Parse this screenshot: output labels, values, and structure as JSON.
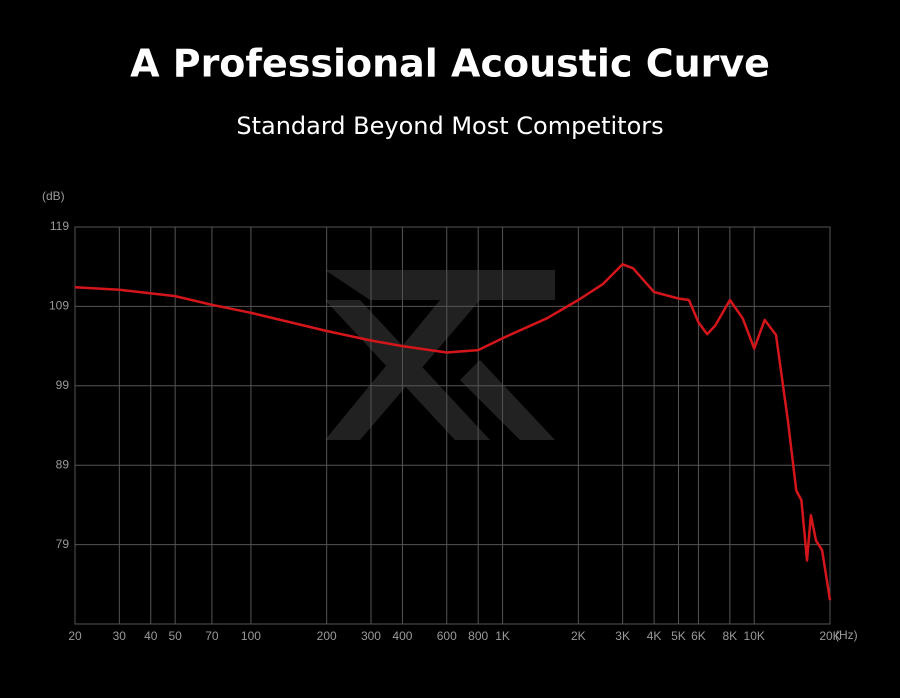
{
  "chart_data": {
    "type": "line",
    "title": "A Professional Acoustic Curve",
    "subtitle": "Standard Beyond Most Competitors",
    "y_label": "(dB)",
    "x_label": "(Hz)",
    "xlog": true,
    "grid": true,
    "xlim": [
      20,
      20000
    ],
    "ylim": [
      69,
      119
    ],
    "xticks": [
      20,
      30,
      40,
      50,
      70,
      100,
      200,
      300,
      400,
      600,
      800,
      {
        "value": 1000,
        "label": "1K"
      },
      {
        "value": 2000,
        "label": "2K"
      },
      {
        "value": 3000,
        "label": "3K"
      },
      {
        "value": 4000,
        "label": "4K"
      },
      {
        "value": 5000,
        "label": "5K"
      },
      {
        "value": 6000,
        "label": "6K"
      },
      {
        "value": 8000,
        "label": "8K"
      },
      {
        "value": 10000,
        "label": "10K"
      },
      {
        "value": 20000,
        "label": "20K"
      }
    ],
    "yticks": [
      79,
      89,
      99,
      109,
      119
    ],
    "series": [
      {
        "color": "#d4161b",
        "x": [
          20,
          30,
          50,
          70,
          100,
          200,
          300,
          400,
          600,
          800,
          1000,
          1500,
          2000,
          2500,
          3000,
          3300,
          4000,
          5000,
          5500,
          6000,
          6500,
          7000,
          8000,
          9000,
          10000,
          11000,
          12200,
          13600,
          14700,
          15400,
          16200,
          16800,
          17600,
          18600,
          20000
        ],
        "values": [
          111.4,
          111.1,
          110.3,
          109.2,
          108.2,
          105.9,
          104.7,
          104.0,
          103.2,
          103.5,
          105.0,
          107.5,
          109.8,
          111.8,
          114.3,
          113.8,
          110.8,
          110.0,
          109.8,
          107.0,
          105.5,
          106.6,
          109.8,
          107.5,
          103.7,
          107.3,
          105.4,
          94.7,
          85.8,
          84.6,
          77.0,
          82.7,
          79.5,
          78.3,
          72.0
        ]
      }
    ]
  }
}
